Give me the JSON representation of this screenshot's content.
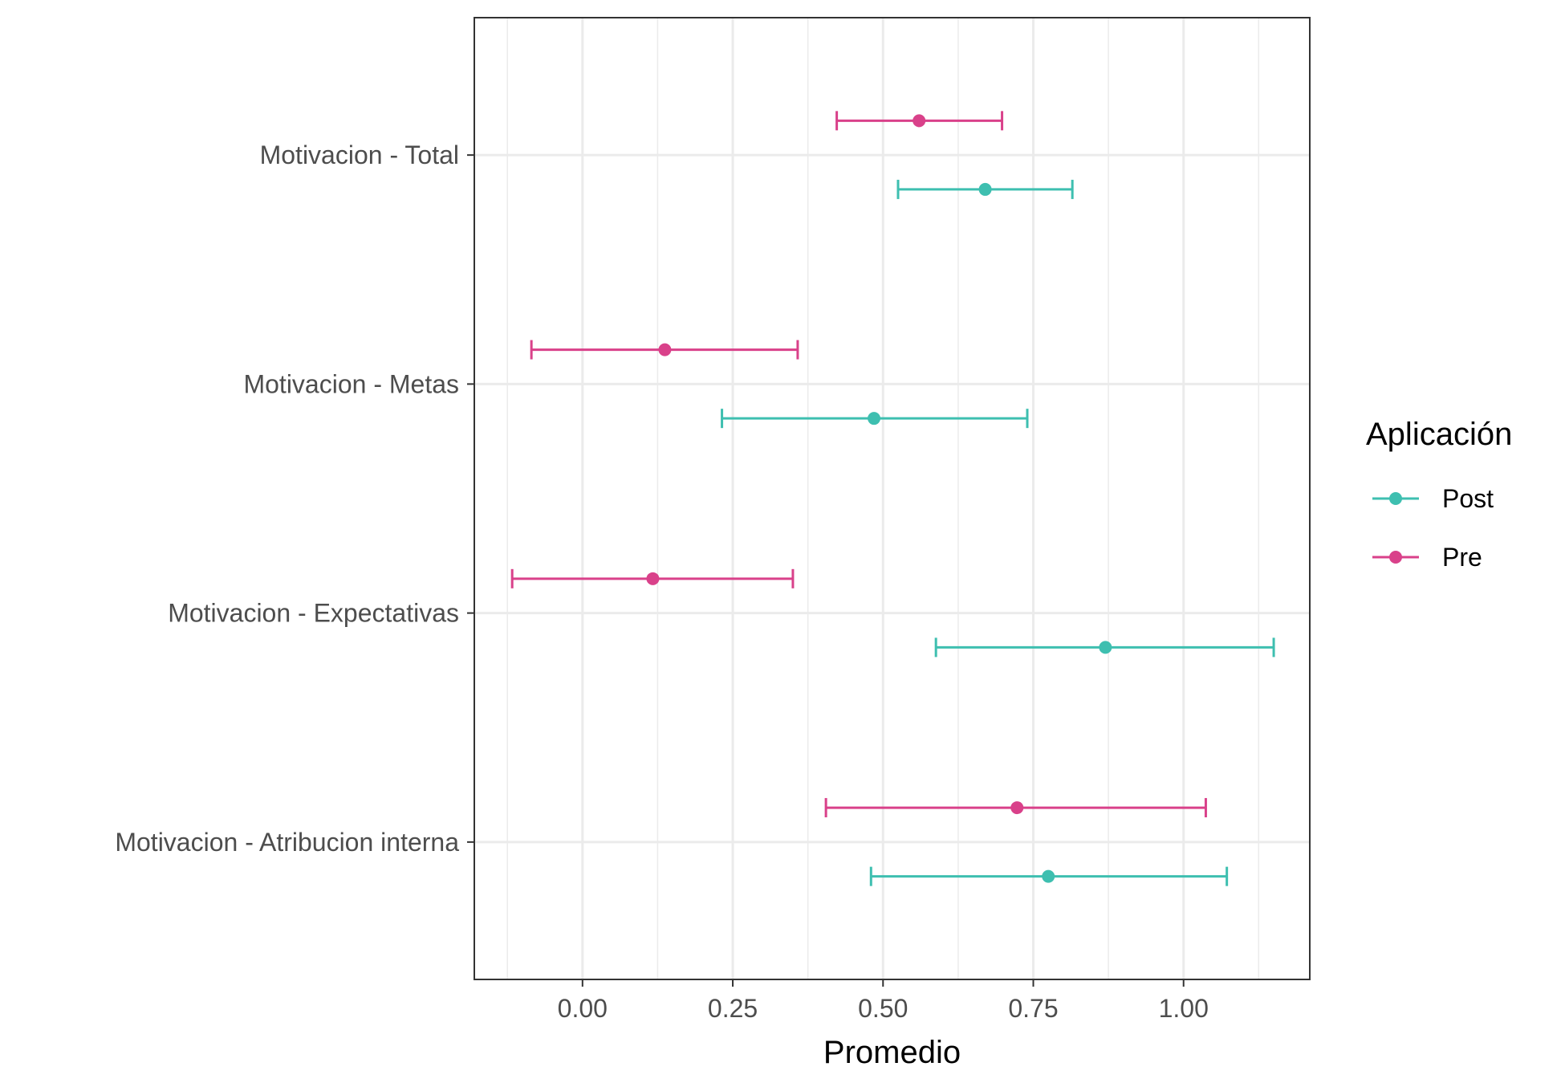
{
  "chart_data": {
    "type": "errorbar",
    "orientation": "horizontal",
    "xlabel": "Promedio",
    "ylabel": "",
    "xlim": [
      -0.18,
      1.21
    ],
    "x_ticks": [
      0.0,
      0.25,
      0.5,
      0.75,
      1.0
    ],
    "x_tick_labels": [
      "0.00",
      "0.25",
      "0.50",
      "0.75",
      "1.00"
    ],
    "grid": true,
    "categories": [
      "Motivacion - Total",
      "Motivacion - Metas",
      "Motivacion - Expectativas",
      "Motivacion - Atribucion interna"
    ],
    "legend": {
      "title": "Aplicación",
      "position": "right"
    },
    "series": [
      {
        "name": "Post",
        "color": "#3ebfb0",
        "means": [
          0.67,
          0.485,
          0.87,
          0.775
        ],
        "lower": [
          0.525,
          0.232,
          0.588,
          0.48
        ],
        "upper": [
          0.815,
          0.74,
          1.15,
          1.072
        ]
      },
      {
        "name": "Pre",
        "color": "#d9418a",
        "means": [
          0.56,
          0.137,
          0.117,
          0.723
        ],
        "lower": [
          0.423,
          -0.085,
          -0.117,
          0.405
        ],
        "upper": [
          0.698,
          0.358,
          0.35,
          1.037
        ]
      }
    ]
  }
}
